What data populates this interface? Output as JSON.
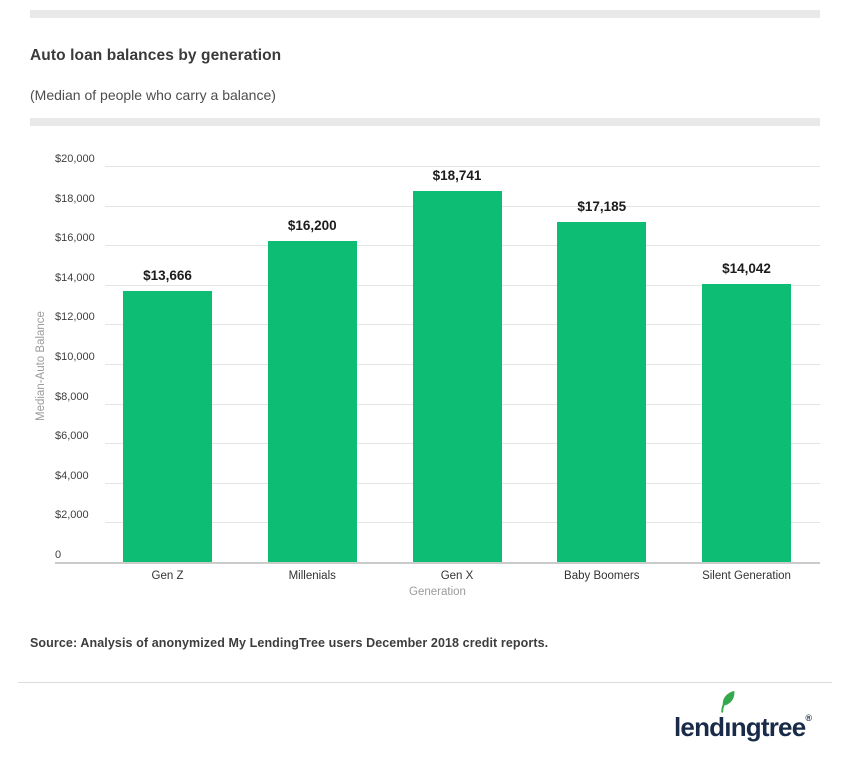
{
  "header": {
    "title": "Auto loan balances by generation",
    "subtitle": "(Median of people who carry a balance)"
  },
  "chart_data": {
    "type": "bar",
    "title": "Auto loan balances by generation",
    "subtitle": "(Median of people who carry a balance)",
    "categories": [
      "Gen Z",
      "Millenials",
      "Gen X",
      "Baby Boomers",
      "Silent Generation"
    ],
    "values": [
      13666,
      16200,
      18741,
      17185,
      14042
    ],
    "value_labels": [
      "$13,666",
      "$16,200",
      "$18,741",
      "$17,185",
      "$14,042"
    ],
    "xlabel": "Generation",
    "ylabel": "Median-Auto Balance",
    "ylim": [
      0,
      20000
    ],
    "ytick_step": 2000,
    "ytick_labels": [
      "$20,000",
      "$18,000",
      "$16,000",
      "$14,000",
      "$12,000",
      "$10,000",
      "$8,000",
      "$6,000",
      "$4,000",
      "$2,000",
      "0"
    ],
    "grid": true,
    "legend": false,
    "bar_color": "#0ebd74"
  },
  "source": {
    "text": "Source: Analysis of anonymized My LendingTree users December 2018 credit reports."
  },
  "footer": {
    "logo": {
      "part1": "lend",
      "part_i": "ı",
      "part2": "ngtree",
      "registered": "®",
      "wordmark_color": "#1a2b49",
      "leaf_color": "#32a94c"
    }
  },
  "colors": {
    "bar": "#0ebd74",
    "divider": "#e9e9e9",
    "gridline": "#e4e4e4",
    "baseline": "#cbcbcb",
    "title_text": "#3a3a3a",
    "logo_navy": "#1a2b49"
  }
}
